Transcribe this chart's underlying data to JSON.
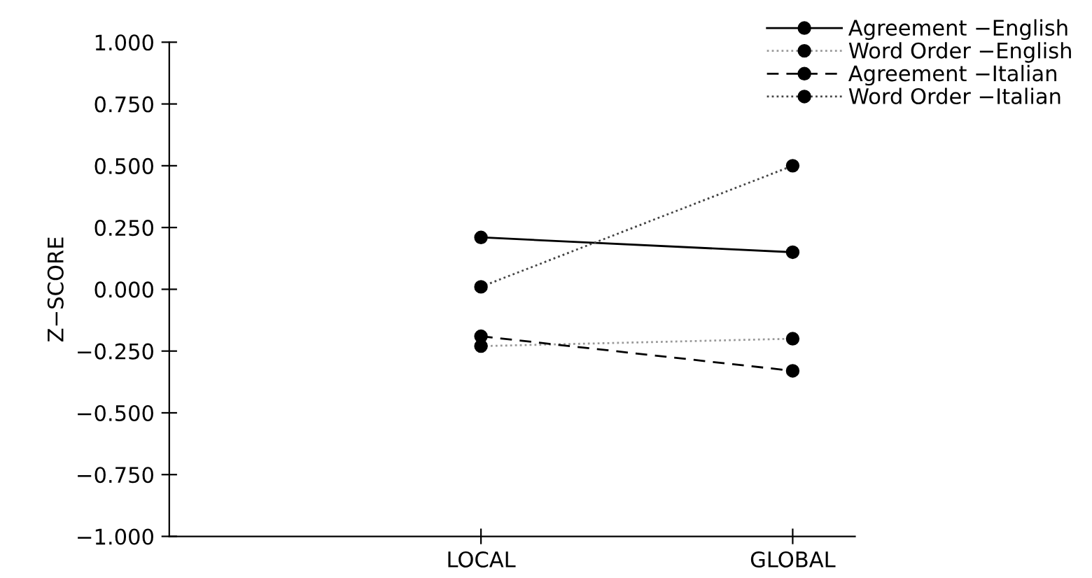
{
  "chart_data": {
    "type": "line",
    "ylabel": "Z−SCORE",
    "categories": [
      "LOCAL",
      "GLOBAL"
    ],
    "series": [
      {
        "name": "Agreement −English",
        "color": "#000000",
        "values": [
          0.21,
          0.15
        ],
        "line_style": "solid"
      },
      {
        "name": "Word Order −English",
        "color": "#999999",
        "values": [
          -0.23,
          -0.2
        ],
        "line_style": "dotted"
      },
      {
        "name": "Agreement −Italian",
        "color": "#000000",
        "values": [
          -0.19,
          -0.33
        ],
        "line_style": "dashed"
      },
      {
        "name": "Word Order −Italian",
        "color": "#444444",
        "values": [
          0.01,
          0.5
        ],
        "line_style": "dotted"
      }
    ],
    "ylim": [
      -1,
      1
    ],
    "yticks": [
      {
        "value": -1,
        "label": "−1.000"
      },
      {
        "value": -0.75,
        "label": "−0.750"
      },
      {
        "value": -0.5,
        "label": "−0.500"
      },
      {
        "value": -0.25,
        "label": "−0.250"
      },
      {
        "value": 0,
        "label": "0.000"
      },
      {
        "value": 0.25,
        "label": "0.250"
      },
      {
        "value": 0.5,
        "label": "0.500"
      },
      {
        "value": 0.75,
        "label": "0.750"
      },
      {
        "value": 1,
        "label": "1.000"
      }
    ],
    "marker": "circle",
    "grid": false,
    "legend": "top right"
  }
}
